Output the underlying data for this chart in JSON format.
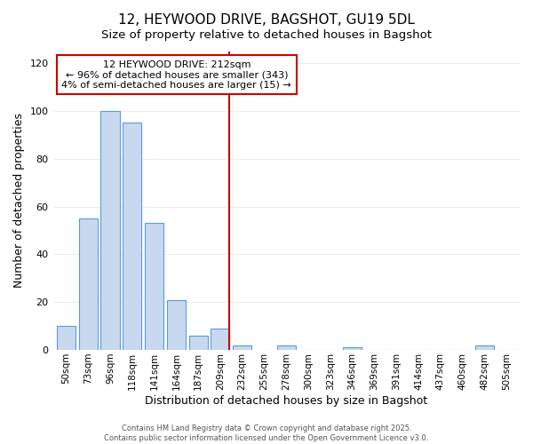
{
  "title": "12, HEYWOOD DRIVE, BAGSHOT, GU19 5DL",
  "subtitle": "Size of property relative to detached houses in Bagshot",
  "xlabel": "Distribution of detached houses by size in Bagshot",
  "ylabel": "Number of detached properties",
  "bar_labels": [
    "50sqm",
    "73sqm",
    "96sqm",
    "118sqm",
    "141sqm",
    "164sqm",
    "187sqm",
    "209sqm",
    "232sqm",
    "255sqm",
    "278sqm",
    "300sqm",
    "323sqm",
    "346sqm",
    "369sqm",
    "391sqm",
    "414sqm",
    "437sqm",
    "460sqm",
    "482sqm",
    "505sqm"
  ],
  "bar_values": [
    10,
    55,
    100,
    95,
    53,
    21,
    6,
    9,
    2,
    0,
    2,
    0,
    0,
    1,
    0,
    0,
    0,
    0,
    0,
    2,
    0
  ],
  "bar_color": "#c8d9ef",
  "bar_edgecolor": "#5b9bd5",
  "vline_x_index": 7,
  "vline_color": "#cc0000",
  "annotation_text": "12 HEYWOOD DRIVE: 212sqm\n← 96% of detached houses are smaller (343)\n4% of semi-detached houses are larger (15) →",
  "annotation_box_edgecolor": "#cc0000",
  "ylim": [
    0,
    125
  ],
  "yticks": [
    0,
    20,
    40,
    60,
    80,
    100,
    120
  ],
  "footer1": "Contains HM Land Registry data © Crown copyright and database right 2025.",
  "footer2": "Contains public sector information licensed under the Open Government Licence v3.0.",
  "bg_color": "#ffffff",
  "plot_bg_color": "#ffffff",
  "grid_color": "#e8eef5"
}
